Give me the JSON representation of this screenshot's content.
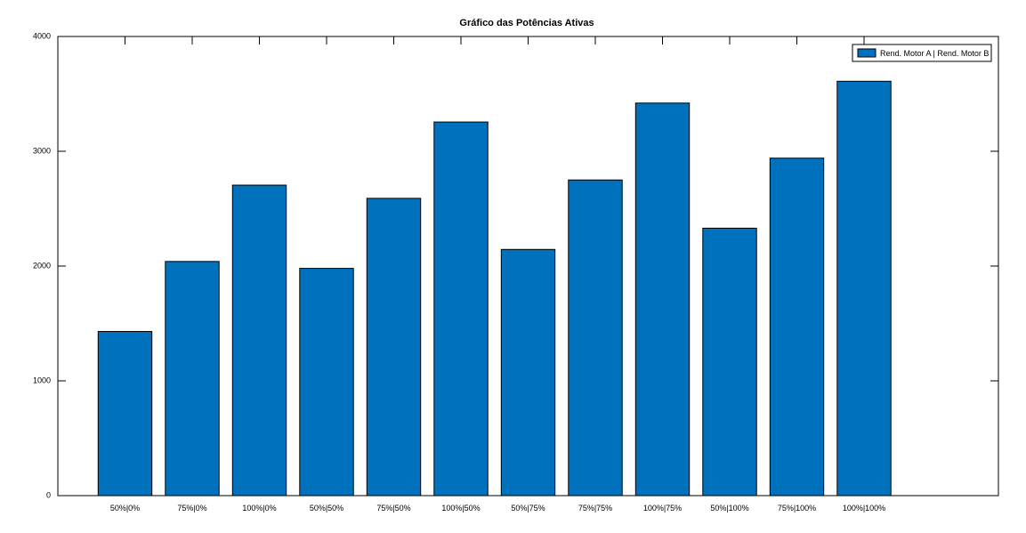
{
  "chart_data": {
    "type": "bar",
    "title": "Gráfico das Potências Ativas",
    "xlabel": "",
    "ylabel": "",
    "categories": [
      "50%|0%",
      "75%|0%",
      "100%|0%",
      "50%|50%",
      "75%|50%",
      "100%|50%",
      "50%|75%",
      "75%|75%",
      "100%|75%",
      "50%|100%",
      "75%|100%",
      "100%|100%"
    ],
    "series": [
      {
        "name": "Rend. Motor A | Rend. Motor B",
        "color": "#0072bd",
        "values": [
          1430,
          2040,
          2705,
          1980,
          2590,
          3255,
          2145,
          2750,
          3420,
          2330,
          2940,
          3610
        ]
      }
    ],
    "ylim": [
      0,
      4000
    ],
    "yticks": [
      "0",
      "1000",
      "2000",
      "3000",
      "4000"
    ],
    "category_slots": 14,
    "grid": false,
    "legend_position": "top-right"
  }
}
